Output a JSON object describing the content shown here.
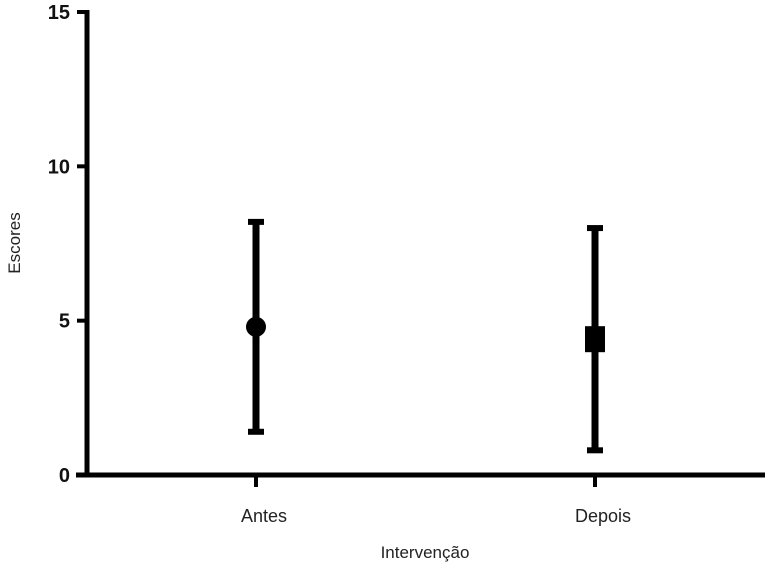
{
  "chart_data": {
    "type": "scatter",
    "title": "",
    "xlabel": "Intervenção",
    "ylabel": "Escores",
    "ylim": [
      0,
      15
    ],
    "yticks": [
      "0",
      "5",
      "10",
      "15"
    ],
    "categories": [
      "Antes",
      "Depois"
    ],
    "series": [
      {
        "values": [
          4.8,
          4.4
        ],
        "lower": [
          1.4,
          0.8
        ],
        "upper": [
          8.2,
          8.0
        ],
        "markers": [
          "circle",
          "square"
        ]
      }
    ],
    "grid": false,
    "color": "#000000"
  }
}
